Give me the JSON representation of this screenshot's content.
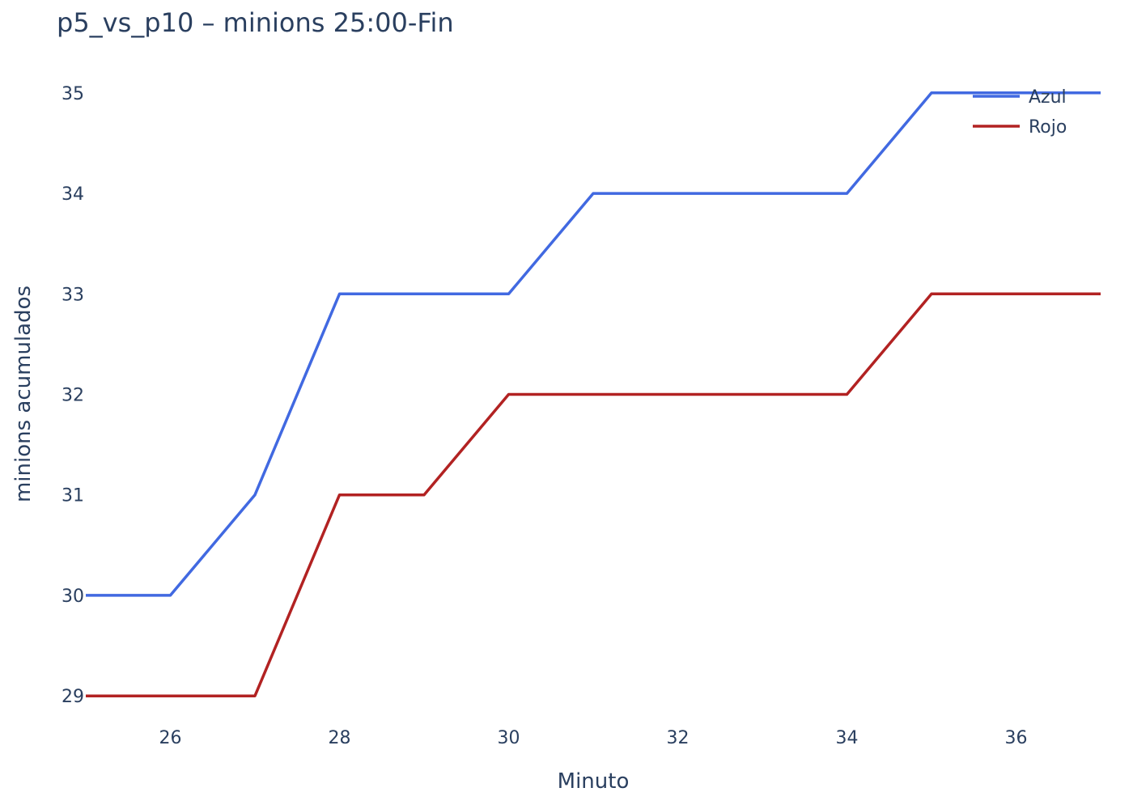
{
  "chart_data": {
    "type": "line",
    "title": "p5_vs_p10 – minions 25:00-Fin",
    "xlabel": "Minuto",
    "ylabel": "minions acumulados",
    "x": [
      25,
      26,
      27,
      28,
      29,
      30,
      31,
      32,
      33,
      34,
      35,
      36,
      37
    ],
    "xlim": [
      25,
      37
    ],
    "ylim": [
      28.8,
      35.2
    ],
    "xticks": [
      26,
      28,
      30,
      32,
      34,
      36
    ],
    "yticks": [
      29,
      30,
      31,
      32,
      33,
      34,
      35
    ],
    "grid": false,
    "legend_position": "top-right",
    "series": [
      {
        "name": "Azul",
        "color": "#4169e1",
        "values": [
          30,
          30,
          31,
          33,
          33,
          33,
          34,
          34,
          34,
          34,
          35,
          35,
          35
        ]
      },
      {
        "name": "Rojo",
        "color": "#b22222",
        "values": [
          29,
          29,
          29,
          31,
          31,
          32,
          32,
          32,
          32,
          32,
          33,
          33,
          33
        ]
      }
    ]
  }
}
